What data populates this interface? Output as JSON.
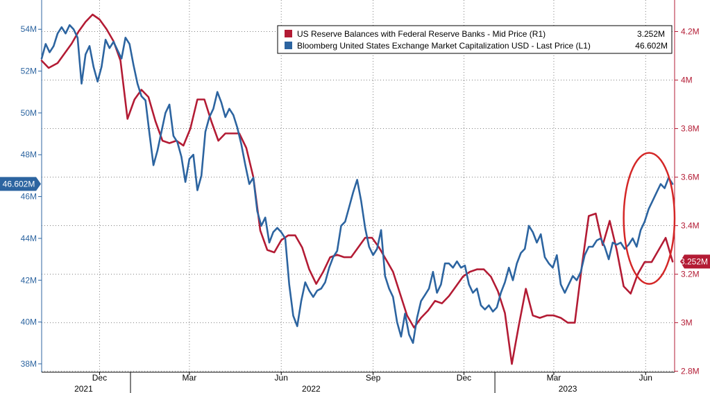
{
  "chart_data": {
    "type": "line",
    "title": "",
    "xlabel": "",
    "ylabel": "",
    "x_range": [
      "2021-10-04",
      "2023-06-30"
    ],
    "x_ticks": [
      {
        "date": "2021-12-01",
        "label": "Dec"
      },
      {
        "date": "2022-03-01",
        "label": "Mar"
      },
      {
        "date": "2022-06-01",
        "label": "Jun"
      },
      {
        "date": "2022-09-01",
        "label": "Sep"
      },
      {
        "date": "2022-12-01",
        "label": "Dec"
      },
      {
        "date": "2023-03-01",
        "label": "Mar"
      },
      {
        "date": "2023-06-01",
        "label": "Jun"
      }
    ],
    "year_labels": [
      {
        "date": "2021-11-15",
        "label": "2021"
      },
      {
        "date": "2022-07-01",
        "label": "2022"
      },
      {
        "date": "2023-03-15",
        "label": "2023"
      }
    ],
    "year_dividers": [
      "2022-01-01",
      "2023-01-01"
    ],
    "y_left": {
      "range": [
        37.6,
        55.4
      ],
      "ticks": [
        38,
        40,
        42,
        44,
        46,
        48,
        50,
        52,
        54
      ],
      "tick_labels": [
        "38M",
        "40M",
        "42M",
        "44M",
        "46M",
        "48M",
        "50M",
        "52M",
        "54M"
      ]
    },
    "y_right": {
      "range": [
        2.796,
        4.33
      ],
      "ticks": [
        2.8,
        3.0,
        3.2,
        3.4,
        3.6,
        3.8,
        4.0,
        4.2
      ],
      "tick_labels": [
        "2.8M",
        "3M",
        "3.2M",
        "3.4M",
        "3.6M",
        "3.8M",
        "4M",
        "4.2M"
      ]
    },
    "grid": true,
    "legend": {
      "placement": "top-right",
      "entries": [
        {
          "label": "US Reserve Balances with Federal Reserve Banks - Mid Price (R1)",
          "value": "3.252M"
        },
        {
          "label": "Bloomberg United States Exchange Market Capitalization USD - Last Price (L1)",
          "value": "46.602M"
        }
      ]
    },
    "last_value_tags": {
      "left": "46.602M",
      "right": "3.252M"
    },
    "highlight": {
      "shape": "ellipse",
      "x_range": [
        "2023-05-10",
        "2023-06-30"
      ],
      "y_right_range": [
        3.16,
        3.7
      ]
    },
    "colors": {
      "reserves": "#b31b34",
      "market_cap": "#2c64a0",
      "grid": "#7f7f7f",
      "left_axis": "#2c64a0",
      "right_axis": "#b31b34"
    },
    "series": [
      {
        "name": "US Reserve Balances with Federal Reserve Banks - Mid Price (R1)",
        "axis": "right",
        "color": "#b31b34",
        "points": [
          [
            "2021-10-04",
            4.08
          ],
          [
            "2021-10-11",
            4.05
          ],
          [
            "2021-10-20",
            4.07
          ],
          [
            "2021-10-27",
            4.11
          ],
          [
            "2021-11-03",
            4.15
          ],
          [
            "2021-11-10",
            4.2
          ],
          [
            "2021-11-17",
            4.24
          ],
          [
            "2021-11-24",
            4.27
          ],
          [
            "2021-12-01",
            4.25
          ],
          [
            "2021-12-08",
            4.21
          ],
          [
            "2021-12-15",
            4.16
          ],
          [
            "2021-12-22",
            4.08
          ],
          [
            "2021-12-29",
            3.84
          ],
          [
            "2022-01-05",
            3.92
          ],
          [
            "2022-01-12",
            3.96
          ],
          [
            "2022-01-19",
            3.93
          ],
          [
            "2022-01-26",
            3.83
          ],
          [
            "2022-02-02",
            3.75
          ],
          [
            "2022-02-09",
            3.74
          ],
          [
            "2022-02-16",
            3.75
          ],
          [
            "2022-02-23",
            3.73
          ],
          [
            "2022-03-02",
            3.8
          ],
          [
            "2022-03-09",
            3.92
          ],
          [
            "2022-03-16",
            3.92
          ],
          [
            "2022-03-23",
            3.83
          ],
          [
            "2022-03-30",
            3.75
          ],
          [
            "2022-04-06",
            3.78
          ],
          [
            "2022-04-13",
            3.78
          ],
          [
            "2022-04-20",
            3.78
          ],
          [
            "2022-04-27",
            3.72
          ],
          [
            "2022-05-04",
            3.6
          ],
          [
            "2022-05-11",
            3.38
          ],
          [
            "2022-05-18",
            3.3
          ],
          [
            "2022-05-25",
            3.29
          ],
          [
            "2022-06-01",
            3.34
          ],
          [
            "2022-06-08",
            3.36
          ],
          [
            "2022-06-15",
            3.36
          ],
          [
            "2022-06-22",
            3.31
          ],
          [
            "2022-06-29",
            3.22
          ],
          [
            "2022-07-06",
            3.16
          ],
          [
            "2022-07-13",
            3.21
          ],
          [
            "2022-07-20",
            3.27
          ],
          [
            "2022-07-27",
            3.28
          ],
          [
            "2022-08-03",
            3.27
          ],
          [
            "2022-08-10",
            3.27
          ],
          [
            "2022-08-17",
            3.31
          ],
          [
            "2022-08-24",
            3.35
          ],
          [
            "2022-08-31",
            3.35
          ],
          [
            "2022-09-07",
            3.31
          ],
          [
            "2022-09-14",
            3.26
          ],
          [
            "2022-09-21",
            3.21
          ],
          [
            "2022-09-28",
            3.12
          ],
          [
            "2022-10-05",
            3.03
          ],
          [
            "2022-10-12",
            2.98
          ],
          [
            "2022-10-19",
            3.02
          ],
          [
            "2022-10-26",
            3.05
          ],
          [
            "2022-11-02",
            3.09
          ],
          [
            "2022-11-09",
            3.08
          ],
          [
            "2022-11-16",
            3.11
          ],
          [
            "2022-11-23",
            3.15
          ],
          [
            "2022-11-30",
            3.19
          ],
          [
            "2022-12-07",
            3.21
          ],
          [
            "2022-12-14",
            3.22
          ],
          [
            "2022-12-21",
            3.22
          ],
          [
            "2022-12-28",
            3.19
          ],
          [
            "2023-01-04",
            3.13
          ],
          [
            "2023-01-11",
            3.04
          ],
          [
            "2023-01-18",
            2.83
          ],
          [
            "2023-01-25",
            2.99
          ],
          [
            "2023-02-01",
            3.14
          ],
          [
            "2023-02-08",
            3.03
          ],
          [
            "2023-02-15",
            3.02
          ],
          [
            "2023-02-22",
            3.03
          ],
          [
            "2023-03-01",
            3.03
          ],
          [
            "2023-03-08",
            3.02
          ],
          [
            "2023-03-15",
            3.0
          ],
          [
            "2023-03-22",
            3.0
          ],
          [
            "2023-03-29",
            3.23
          ],
          [
            "2023-04-05",
            3.44
          ],
          [
            "2023-04-12",
            3.45
          ],
          [
            "2023-04-19",
            3.32
          ],
          [
            "2023-04-26",
            3.42
          ],
          [
            "2023-05-03",
            3.3
          ],
          [
            "2023-05-10",
            3.15
          ],
          [
            "2023-05-17",
            3.12
          ],
          [
            "2023-05-24",
            3.2
          ],
          [
            "2023-05-31",
            3.25
          ],
          [
            "2023-06-07",
            3.25
          ],
          [
            "2023-06-14",
            3.3
          ],
          [
            "2023-06-21",
            3.35
          ],
          [
            "2023-06-28",
            3.252
          ]
        ]
      },
      {
        "name": "Bloomberg United States Exchange Market Capitalization USD - Last Price (L1)",
        "axis": "left",
        "color": "#2c64a0",
        "points": [
          [
            "2021-10-04",
            52.6
          ],
          [
            "2021-10-08",
            53.3
          ],
          [
            "2021-10-12",
            52.9
          ],
          [
            "2021-10-16",
            53.2
          ],
          [
            "2021-10-20",
            53.8
          ],
          [
            "2021-10-24",
            54.1
          ],
          [
            "2021-10-28",
            53.8
          ],
          [
            "2021-11-01",
            54.2
          ],
          [
            "2021-11-05",
            54.0
          ],
          [
            "2021-11-09",
            53.6
          ],
          [
            "2021-11-13",
            51.4
          ],
          [
            "2021-11-17",
            52.8
          ],
          [
            "2021-11-21",
            53.2
          ],
          [
            "2021-11-25",
            52.2
          ],
          [
            "2021-11-29",
            51.5
          ],
          [
            "2021-12-03",
            52.2
          ],
          [
            "2021-12-07",
            53.5
          ],
          [
            "2021-12-11",
            53.1
          ],
          [
            "2021-12-15",
            53.4
          ],
          [
            "2021-12-19",
            53.0
          ],
          [
            "2021-12-23",
            52.6
          ],
          [
            "2021-12-27",
            53.6
          ],
          [
            "2021-12-31",
            53.3
          ],
          [
            "2022-01-04",
            52.3
          ],
          [
            "2022-01-08",
            51.4
          ],
          [
            "2022-01-12",
            50.8
          ],
          [
            "2022-01-16",
            50.6
          ],
          [
            "2022-01-20",
            49.0
          ],
          [
            "2022-01-24",
            47.5
          ],
          [
            "2022-01-28",
            48.2
          ],
          [
            "2022-02-01",
            49.1
          ],
          [
            "2022-02-05",
            50.0
          ],
          [
            "2022-02-09",
            50.4
          ],
          [
            "2022-02-13",
            48.9
          ],
          [
            "2022-02-17",
            48.6
          ],
          [
            "2022-02-21",
            47.9
          ],
          [
            "2022-02-25",
            46.7
          ],
          [
            "2022-03-01",
            47.8
          ],
          [
            "2022-03-05",
            48.0
          ],
          [
            "2022-03-09",
            46.3
          ],
          [
            "2022-03-13",
            47.0
          ],
          [
            "2022-03-17",
            49.1
          ],
          [
            "2022-03-21",
            49.8
          ],
          [
            "2022-03-25",
            50.2
          ],
          [
            "2022-03-29",
            51.0
          ],
          [
            "2022-04-02",
            50.5
          ],
          [
            "2022-04-06",
            49.8
          ],
          [
            "2022-04-10",
            50.2
          ],
          [
            "2022-04-14",
            49.9
          ],
          [
            "2022-04-18",
            49.3
          ],
          [
            "2022-04-22",
            48.5
          ],
          [
            "2022-04-26",
            47.5
          ],
          [
            "2022-04-30",
            46.6
          ],
          [
            "2022-05-04",
            46.9
          ],
          [
            "2022-05-08",
            45.3
          ],
          [
            "2022-05-12",
            44.6
          ],
          [
            "2022-05-16",
            45.0
          ],
          [
            "2022-05-20",
            43.8
          ],
          [
            "2022-05-24",
            44.3
          ],
          [
            "2022-05-28",
            44.5
          ],
          [
            "2022-06-01",
            44.3
          ],
          [
            "2022-06-05",
            44.0
          ],
          [
            "2022-06-09",
            41.8
          ],
          [
            "2022-06-13",
            40.3
          ],
          [
            "2022-06-17",
            39.8
          ],
          [
            "2022-06-21",
            41.0
          ],
          [
            "2022-06-25",
            41.9
          ],
          [
            "2022-06-29",
            41.5
          ],
          [
            "2022-07-03",
            41.2
          ],
          [
            "2022-07-07",
            41.5
          ],
          [
            "2022-07-11",
            41.6
          ],
          [
            "2022-07-15",
            41.9
          ],
          [
            "2022-07-19",
            42.6
          ],
          [
            "2022-07-23",
            43.1
          ],
          [
            "2022-07-27",
            43.4
          ],
          [
            "2022-07-31",
            44.6
          ],
          [
            "2022-08-04",
            44.8
          ],
          [
            "2022-08-08",
            45.5
          ],
          [
            "2022-08-12",
            46.2
          ],
          [
            "2022-08-16",
            46.8
          ],
          [
            "2022-08-20",
            45.8
          ],
          [
            "2022-08-24",
            44.5
          ],
          [
            "2022-08-28",
            43.6
          ],
          [
            "2022-09-01",
            43.2
          ],
          [
            "2022-09-05",
            43.5
          ],
          [
            "2022-09-09",
            44.4
          ],
          [
            "2022-09-13",
            42.2
          ],
          [
            "2022-09-17",
            41.6
          ],
          [
            "2022-09-21",
            41.2
          ],
          [
            "2022-09-25",
            40.0
          ],
          [
            "2022-09-29",
            39.3
          ],
          [
            "2022-10-03",
            40.4
          ],
          [
            "2022-10-07",
            39.4
          ],
          [
            "2022-10-11",
            39.0
          ],
          [
            "2022-10-15",
            40.2
          ],
          [
            "2022-10-19",
            41.0
          ],
          [
            "2022-10-23",
            41.3
          ],
          [
            "2022-10-27",
            41.6
          ],
          [
            "2022-10-31",
            42.4
          ],
          [
            "2022-11-04",
            41.4
          ],
          [
            "2022-11-08",
            41.8
          ],
          [
            "2022-11-12",
            42.8
          ],
          [
            "2022-11-16",
            42.8
          ],
          [
            "2022-11-20",
            42.6
          ],
          [
            "2022-11-24",
            42.9
          ],
          [
            "2022-11-28",
            42.6
          ],
          [
            "2022-12-02",
            42.7
          ],
          [
            "2022-12-06",
            41.8
          ],
          [
            "2022-12-10",
            41.4
          ],
          [
            "2022-12-14",
            41.6
          ],
          [
            "2022-12-18",
            40.8
          ],
          [
            "2022-12-22",
            40.6
          ],
          [
            "2022-12-26",
            40.8
          ],
          [
            "2022-12-30",
            40.5
          ],
          [
            "2023-01-03",
            40.7
          ],
          [
            "2023-01-07",
            41.4
          ],
          [
            "2023-01-11",
            41.9
          ],
          [
            "2023-01-15",
            42.6
          ],
          [
            "2023-01-19",
            42.0
          ],
          [
            "2023-01-23",
            42.8
          ],
          [
            "2023-01-27",
            43.3
          ],
          [
            "2023-01-31",
            43.5
          ],
          [
            "2023-02-04",
            44.6
          ],
          [
            "2023-02-08",
            44.3
          ],
          [
            "2023-02-12",
            43.8
          ],
          [
            "2023-02-16",
            44.2
          ],
          [
            "2023-02-20",
            43.1
          ],
          [
            "2023-02-24",
            42.8
          ],
          [
            "2023-02-28",
            42.6
          ],
          [
            "2023-03-04",
            43.2
          ],
          [
            "2023-03-08",
            41.8
          ],
          [
            "2023-03-12",
            41.4
          ],
          [
            "2023-03-16",
            41.8
          ],
          [
            "2023-03-20",
            42.2
          ],
          [
            "2023-03-24",
            42.0
          ],
          [
            "2023-03-28",
            42.4
          ],
          [
            "2023-04-01",
            43.2
          ],
          [
            "2023-04-05",
            43.6
          ],
          [
            "2023-04-09",
            43.6
          ],
          [
            "2023-04-13",
            43.9
          ],
          [
            "2023-04-17",
            44.0
          ],
          [
            "2023-04-21",
            43.6
          ],
          [
            "2023-04-25",
            43.0
          ],
          [
            "2023-04-29",
            43.8
          ],
          [
            "2023-05-03",
            43.7
          ],
          [
            "2023-05-07",
            43.8
          ],
          [
            "2023-05-11",
            43.5
          ],
          [
            "2023-05-15",
            43.7
          ],
          [
            "2023-05-19",
            44.0
          ],
          [
            "2023-05-23",
            43.6
          ],
          [
            "2023-05-27",
            44.4
          ],
          [
            "2023-05-31",
            44.8
          ],
          [
            "2023-06-04",
            45.4
          ],
          [
            "2023-06-08",
            45.8
          ],
          [
            "2023-06-12",
            46.2
          ],
          [
            "2023-06-16",
            46.6
          ],
          [
            "2023-06-20",
            46.4
          ],
          [
            "2023-06-24",
            46.9
          ],
          [
            "2023-06-28",
            46.602
          ]
        ]
      }
    ]
  }
}
